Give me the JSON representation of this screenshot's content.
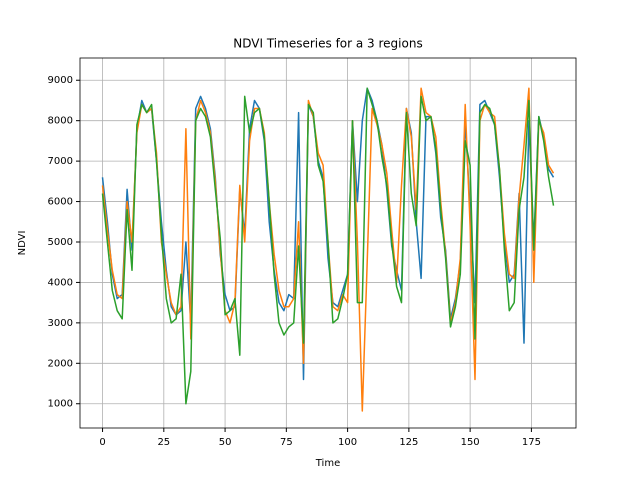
{
  "chart_data": {
    "type": "line",
    "title": "NDVI Timeseries for a 3 regions",
    "x_label": "Time",
    "y_label": "NDVI",
    "x": [
      0,
      2,
      4,
      6,
      8,
      10,
      12,
      14,
      16,
      18,
      20,
      22,
      24,
      26,
      28,
      30,
      32,
      34,
      36,
      38,
      40,
      42,
      44,
      46,
      48,
      50,
      52,
      54,
      56,
      58,
      60,
      62,
      64,
      66,
      68,
      70,
      72,
      74,
      76,
      78,
      80,
      82,
      84,
      86,
      88,
      90,
      92,
      94,
      96,
      98,
      100,
      102,
      104,
      106,
      108,
      110,
      112,
      114,
      116,
      118,
      120,
      122,
      124,
      126,
      128,
      130,
      132,
      134,
      136,
      138,
      140,
      142,
      144,
      146,
      148,
      150,
      152,
      154,
      156,
      158,
      160,
      162,
      164,
      166,
      168,
      170,
      172,
      174,
      176,
      178,
      180,
      182,
      184
    ],
    "series": [
      {
        "color": "#1f77b4",
        "values": [
          6600,
          5500,
          4200,
          3600,
          3700,
          6300,
          4800,
          7800,
          8500,
          8200,
          8300,
          7000,
          5500,
          4300,
          3400,
          3200,
          3300,
          5000,
          3000,
          8300,
          8600,
          8300,
          7800,
          6600,
          4700,
          3700,
          3300,
          3400,
          6300,
          5200,
          7800,
          8500,
          8300,
          7500,
          5500,
          4300,
          3500,
          3300,
          3700,
          3600,
          8200,
          1600,
          8400,
          8100,
          7000,
          6600,
          4600,
          3500,
          3400,
          3800,
          4200,
          8000,
          6000,
          8000,
          8800,
          8500,
          8000,
          7400,
          6300,
          4900,
          4300,
          3800,
          8300,
          7700,
          5500,
          4100,
          8100,
          8100,
          7200,
          5600,
          4800,
          3100,
          3600,
          4500,
          8000,
          5800,
          3500,
          8400,
          8500,
          8200,
          7900,
          6600,
          5000,
          4000,
          4200,
          6200,
          2500,
          8000,
          5000,
          8100,
          7600,
          6800,
          6600
        ]
      },
      {
        "color": "#ff7f0e",
        "values": [
          6400,
          5300,
          4300,
          3700,
          3600,
          6000,
          5000,
          7700,
          8400,
          8200,
          8300,
          7200,
          5000,
          4200,
          3500,
          3200,
          3400,
          7800,
          2600,
          8000,
          8500,
          8200,
          7700,
          6500,
          4800,
          3300,
          3000,
          3500,
          6400,
          5000,
          7500,
          8300,
          8300,
          7700,
          6000,
          4700,
          3800,
          3400,
          3400,
          3600,
          5500,
          2000,
          8500,
          8100,
          7200,
          6900,
          5000,
          3400,
          3300,
          3700,
          3500,
          8000,
          5000,
          820,
          4500,
          8300,
          7900,
          7400,
          6700,
          5300,
          4000,
          6400,
          8300,
          7600,
          5800,
          8800,
          8200,
          8100,
          7600,
          6000,
          4700,
          3000,
          3500,
          4600,
          8400,
          5400,
          1600,
          8000,
          8400,
          8200,
          8100,
          6800,
          5200,
          4200,
          4100,
          6100,
          7400,
          8800,
          4000,
          8000,
          7700,
          6900,
          6700
        ]
      },
      {
        "color": "#2ca02c",
        "values": [
          6200,
          5000,
          3800,
          3300,
          3100,
          5800,
          4300,
          7900,
          8400,
          8200,
          8400,
          7000,
          5200,
          3600,
          3000,
          3100,
          4200,
          1000,
          1800,
          8000,
          8300,
          8100,
          7600,
          6300,
          5100,
          3200,
          3300,
          3600,
          2200,
          8600,
          7700,
          8200,
          8300,
          7600,
          6000,
          4200,
          3000,
          2700,
          2900,
          3000,
          4900,
          2500,
          8400,
          8200,
          6900,
          6500,
          5000,
          3000,
          3100,
          3600,
          4200,
          8000,
          3500,
          3500,
          8800,
          8400,
          8000,
          7100,
          6400,
          5000,
          3900,
          3500,
          8200,
          6200,
          5400,
          8600,
          8000,
          8100,
          7300,
          5800,
          4600,
          2900,
          3400,
          4200,
          7500,
          6900,
          2600,
          8200,
          8400,
          8300,
          7900,
          6800,
          4800,
          3300,
          3500,
          5800,
          6600,
          8500,
          4800,
          8100,
          7500,
          6600,
          5900
        ]
      }
    ],
    "xlim": [
      -9.2,
      193.2
    ],
    "ylim": [
      400,
      9550
    ],
    "xticks": [
      0,
      25,
      50,
      75,
      100,
      125,
      150,
      175
    ],
    "yticks": [
      1000,
      2000,
      3000,
      4000,
      5000,
      6000,
      7000,
      8000,
      9000
    ],
    "grid": true
  }
}
